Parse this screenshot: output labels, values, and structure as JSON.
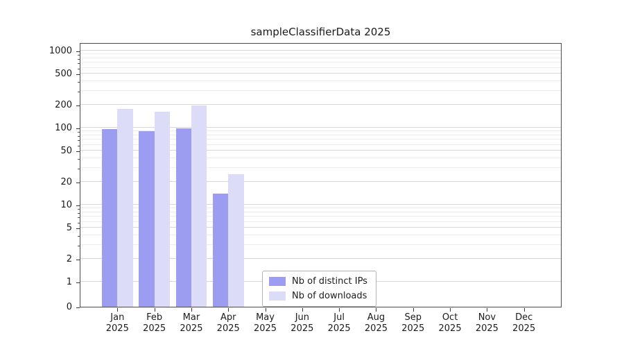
{
  "title": "sampleClassifierData 2025",
  "chart_data": {
    "type": "bar",
    "title": "sampleClassifierData 2025",
    "y_scale": "symlog",
    "grid": true,
    "legend_position": "lower center",
    "year": "2025",
    "months": [
      "Jan",
      "Feb",
      "Mar",
      "Apr",
      "May",
      "Jun",
      "Jul",
      "Aug",
      "Sep",
      "Oct",
      "Nov",
      "Dec"
    ],
    "categories": [
      "Jan 2025",
      "Feb 2025",
      "Mar 2025",
      "Apr 2025",
      "May 2025",
      "Jun 2025",
      "Jul 2025",
      "Aug 2025",
      "Sep 2025",
      "Oct 2025",
      "Nov 2025",
      "Dec 2025"
    ],
    "series": [
      {
        "name": "Nb of distinct IPs",
        "color": "#9c9cf0",
        "values": [
          95,
          90,
          97,
          14,
          0,
          0,
          0,
          0,
          0,
          0,
          0,
          0
        ]
      },
      {
        "name": "Nb of downloads",
        "color": "#dcdcf8",
        "values": [
          175,
          160,
          195,
          25,
          0,
          0,
          0,
          0,
          0,
          0,
          0,
          0
        ]
      }
    ],
    "y_ticks": [
      0,
      1,
      2,
      5,
      10,
      20,
      50,
      100,
      200,
      500,
      1000
    ],
    "y_minor_ticks": [
      3,
      4,
      6,
      7,
      8,
      9,
      30,
      40,
      60,
      70,
      80,
      90,
      300,
      400,
      600,
      700,
      800,
      900
    ],
    "ylim": [
      0,
      1300
    ]
  }
}
